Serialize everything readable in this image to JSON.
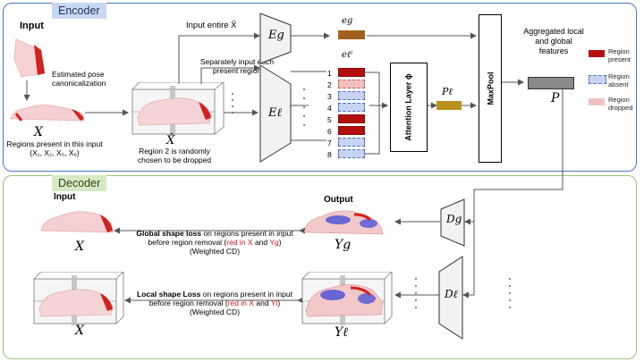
{
  "encoder": {
    "header": "Encoder",
    "input_label": "Input",
    "pose_label": "Estimated pose canonicalization",
    "x_label": "X",
    "regions_text": "Regions present in this input (X₁, X₂, X₅, X₆)",
    "xhat_label": "X̂",
    "dropped_text": "Region 2 is randomly chosen to be dropped",
    "input_entire": "Input entire X̂",
    "separately_text": "Separately input each present region",
    "eg_label": "Eg",
    "el_label": "Eℓ",
    "eg_feature": "eg",
    "el_feature": "eℓⁱ",
    "region_numbers": [
      "1",
      "2",
      "3",
      "4",
      "5",
      "6",
      "7",
      "8"
    ],
    "region_states": [
      "present",
      "dropped",
      "absent",
      "absent",
      "present",
      "present",
      "absent",
      "absent"
    ],
    "attention_label": "Attention Layer ϕ",
    "pl_label": "Pℓ",
    "maxpool_label": "MaxPool",
    "aggregated_text": "Aggregated local and global features",
    "p_label": "P"
  },
  "legend": {
    "present": "Region present",
    "absent": "Region absent",
    "dropped": "Region dropped"
  },
  "decoder": {
    "header": "Decoder",
    "input_label": "Input",
    "output_label": "Output",
    "x_label": "X",
    "yg_label": "Yg",
    "yl_label": "Yℓ",
    "dg_label": "Dg",
    "dl_label": "Dℓ",
    "global_bold": "Global shape loss",
    "global_rest": " on regions present in input before region removal (",
    "local_bold": "Local shape Loss",
    "local_rest": " on regions present in input before region removal (",
    "red_x": "red in X",
    "and": " and ",
    "yg_ref": "Yg",
    "yl_ref": "Yl",
    "close": ")",
    "weighted_cd": "(Weighted CD)"
  },
  "colors": {
    "encoder_border": "#4a74c9",
    "decoder_border": "#9cc079",
    "region_present": "#b40f0f",
    "region_absent": "#c7d3f2",
    "region_dropped": "#f2c0c0",
    "feature_eg": "#a0611c",
    "feature_pl": "#b8901c",
    "p_box": "#8a8a8a"
  }
}
